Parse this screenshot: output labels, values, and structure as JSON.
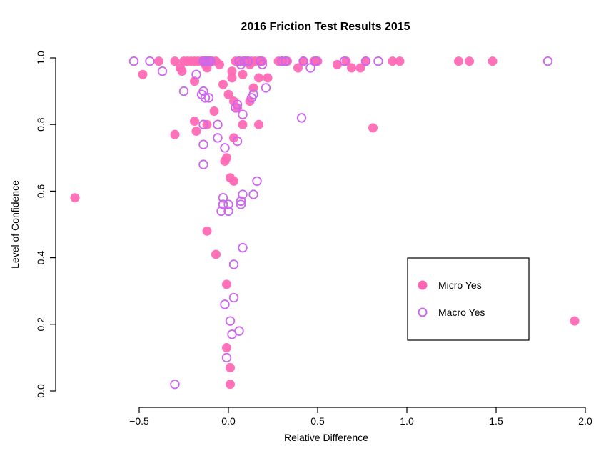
{
  "chart_data": {
    "type": "scatter",
    "title": "2016 Friction Test Results 2015",
    "xlabel": "Relative Difference",
    "ylabel": "Level of Confidence",
    "xlim": [
      -0.5,
      2.0
    ],
    "ylim": [
      0.0,
      1.0
    ],
    "x_ticks": [
      "-0.5",
      "0.0",
      "0.5",
      "1.0",
      "1.5",
      "2.0"
    ],
    "y_ticks": [
      "0.0",
      "0.2",
      "0.4",
      "0.6",
      "0.8",
      "1.0"
    ],
    "grid": false,
    "legend_position": "inside-right",
    "series": [
      {
        "name": "Micro Yes",
        "marker": "filled-circle",
        "color": "#FF69B4",
        "points": [
          [
            -0.86,
            0.58
          ],
          [
            -0.48,
            0.95
          ],
          [
            -0.39,
            0.99
          ],
          [
            -0.3,
            0.99
          ],
          [
            -0.27,
            0.97
          ],
          [
            -0.26,
            0.96
          ],
          [
            -0.25,
            0.99
          ],
          [
            -0.23,
            0.99
          ],
          [
            -0.21,
            0.99
          ],
          [
            -0.19,
            0.99
          ],
          [
            -0.17,
            0.99
          ],
          [
            -0.15,
            0.99
          ],
          [
            -0.13,
            0.98
          ],
          [
            -0.12,
            0.97
          ],
          [
            -0.11,
            0.99
          ],
          [
            -0.09,
            0.99
          ],
          [
            -0.07,
            0.99
          ],
          [
            -0.05,
            0.98
          ],
          [
            -0.19,
            0.93
          ],
          [
            -0.19,
            0.81
          ],
          [
            -0.18,
            0.78
          ],
          [
            -0.12,
            0.8
          ],
          [
            -0.08,
            0.84
          ],
          [
            -0.3,
            0.77
          ],
          [
            -0.03,
            0.92
          ],
          [
            0.0,
            0.89
          ],
          [
            0.02,
            0.94
          ],
          [
            0.02,
            0.96
          ],
          [
            0.03,
            0.87
          ],
          [
            0.05,
            0.85
          ],
          [
            0.04,
            0.99
          ],
          [
            0.06,
            0.99
          ],
          [
            0.08,
            0.99
          ],
          [
            0.1,
            0.99
          ],
          [
            0.12,
            0.98
          ],
          [
            0.13,
            0.99
          ],
          [
            0.15,
            0.99
          ],
          [
            0.17,
            0.99
          ],
          [
            0.19,
            0.99
          ],
          [
            0.08,
            0.95
          ],
          [
            0.12,
            0.87
          ],
          [
            0.14,
            0.91
          ],
          [
            0.17,
            0.94
          ],
          [
            0.22,
            0.94
          ],
          [
            0.03,
            0.76
          ],
          [
            0.08,
            0.8
          ],
          [
            0.17,
            0.8
          ],
          [
            -0.01,
            0.7
          ],
          [
            -0.02,
            0.69
          ],
          [
            0.01,
            0.64
          ],
          [
            0.03,
            0.63
          ],
          [
            -0.12,
            0.48
          ],
          [
            -0.07,
            0.41
          ],
          [
            -0.01,
            0.32
          ],
          [
            -0.01,
            0.13
          ],
          [
            0.01,
            0.07
          ],
          [
            0.01,
            0.02
          ],
          [
            0.28,
            0.99
          ],
          [
            0.3,
            0.99
          ],
          [
            0.33,
            0.99
          ],
          [
            0.39,
            0.97
          ],
          [
            0.42,
            0.99
          ],
          [
            0.48,
            0.99
          ],
          [
            0.5,
            0.99
          ],
          [
            0.61,
            0.98
          ],
          [
            0.66,
            0.99
          ],
          [
            0.69,
            0.97
          ],
          [
            0.74,
            0.97
          ],
          [
            0.77,
            0.99
          ],
          [
            0.81,
            0.79
          ],
          [
            0.92,
            0.99
          ],
          [
            0.96,
            0.99
          ],
          [
            1.29,
            0.99
          ],
          [
            1.35,
            0.99
          ],
          [
            1.48,
            0.99
          ],
          [
            1.94,
            0.21
          ]
        ]
      },
      {
        "name": "Macro Yes",
        "marker": "open-circle",
        "color": "#CC66EE",
        "points": [
          [
            -0.53,
            0.99
          ],
          [
            -0.44,
            0.99
          ],
          [
            -0.37,
            0.96
          ],
          [
            -0.25,
            0.9
          ],
          [
            -0.18,
            0.95
          ],
          [
            -0.14,
            0.99
          ],
          [
            -0.13,
            0.99
          ],
          [
            -0.12,
            0.99
          ],
          [
            -0.11,
            0.99
          ],
          [
            -0.1,
            0.99
          ],
          [
            -0.15,
            0.89
          ],
          [
            -0.14,
            0.9
          ],
          [
            -0.13,
            0.88
          ],
          [
            -0.11,
            0.88
          ],
          [
            -0.14,
            0.8
          ],
          [
            -0.14,
            0.74
          ],
          [
            -0.14,
            0.68
          ],
          [
            -0.06,
            0.8
          ],
          [
            -0.06,
            0.76
          ],
          [
            -0.02,
            0.73
          ],
          [
            -0.3,
            0.02
          ],
          [
            0.06,
            0.99
          ],
          [
            0.07,
            0.98
          ],
          [
            0.09,
            0.99
          ],
          [
            0.11,
            0.99
          ],
          [
            0.04,
            0.85
          ],
          [
            0.05,
            0.86
          ],
          [
            0.08,
            0.83
          ],
          [
            0.05,
            0.75
          ],
          [
            0.13,
            0.88
          ],
          [
            0.14,
            0.89
          ],
          [
            0.18,
            0.99
          ],
          [
            0.19,
            0.98
          ],
          [
            0.21,
            0.91
          ],
          [
            -0.03,
            0.58
          ],
          [
            -0.03,
            0.56
          ],
          [
            0.0,
            0.56
          ],
          [
            -0.04,
            0.54
          ],
          [
            0.0,
            0.54
          ],
          [
            0.07,
            0.56
          ],
          [
            0.07,
            0.57
          ],
          [
            0.08,
            0.59
          ],
          [
            0.14,
            0.59
          ],
          [
            0.16,
            0.63
          ],
          [
            0.08,
            0.43
          ],
          [
            0.03,
            0.38
          ],
          [
            0.03,
            0.28
          ],
          [
            -0.02,
            0.26
          ],
          [
            0.01,
            0.21
          ],
          [
            0.06,
            0.18
          ],
          [
            0.02,
            0.17
          ],
          [
            -0.01,
            0.1
          ],
          [
            0.3,
            0.99
          ],
          [
            0.32,
            0.99
          ],
          [
            0.42,
            0.99
          ],
          [
            0.41,
            0.82
          ],
          [
            0.46,
            0.97
          ],
          [
            0.49,
            0.99
          ],
          [
            0.65,
            0.99
          ],
          [
            0.77,
            0.99
          ],
          [
            0.84,
            0.99
          ],
          [
            1.79,
            0.99
          ]
        ]
      }
    ]
  },
  "legend": {
    "items": [
      {
        "label": "Micro Yes",
        "marker": "filled-circle",
        "color": "#FF69B4"
      },
      {
        "label": "Macro Yes",
        "marker": "open-circle",
        "color": "#CC66EE"
      }
    ]
  }
}
